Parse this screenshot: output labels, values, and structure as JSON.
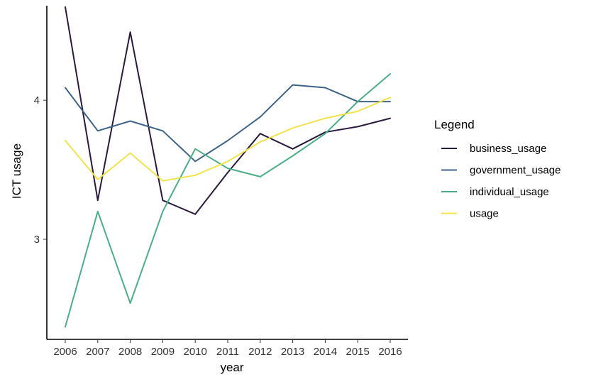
{
  "chart_data": {
    "type": "line",
    "title": "",
    "xlabel": "year",
    "ylabel": "ICT usage",
    "x": [
      2006,
      2007,
      2008,
      2009,
      2010,
      2011,
      2012,
      2013,
      2014,
      2015,
      2016
    ],
    "x_tick_labels": [
      "2006",
      "2007",
      "2008",
      "2009",
      "2010",
      "2011",
      "2012",
      "2013",
      "2014",
      "2015",
      "2016"
    ],
    "y_ticks": [
      3,
      4
    ],
    "y_tick_labels": [
      "3",
      "4"
    ],
    "ylim": [
      2.28,
      4.68
    ],
    "grid": false,
    "legend": {
      "title": "Legend",
      "placement": "right"
    },
    "series": [
      {
        "name": "business_usage",
        "color": "#2b1a3f",
        "values": [
          4.67,
          3.28,
          4.49,
          3.28,
          3.18,
          3.48,
          3.76,
          3.65,
          3.77,
          3.81,
          3.87
        ]
      },
      {
        "name": "government_usage",
        "color": "#3d6488",
        "values": [
          4.09,
          3.78,
          3.85,
          3.78,
          3.56,
          3.71,
          3.88,
          4.11,
          4.09,
          3.99,
          3.99
        ]
      },
      {
        "name": "individual_usage",
        "color": "#4aae86",
        "values": [
          2.37,
          3.2,
          2.54,
          3.2,
          3.65,
          3.51,
          3.45,
          3.6,
          3.76,
          3.99,
          4.19
        ]
      },
      {
        "name": "usage",
        "color": "#f2e34c",
        "values": [
          3.71,
          3.43,
          3.62,
          3.42,
          3.46,
          3.56,
          3.7,
          3.8,
          3.87,
          3.92,
          4.02
        ]
      }
    ]
  }
}
